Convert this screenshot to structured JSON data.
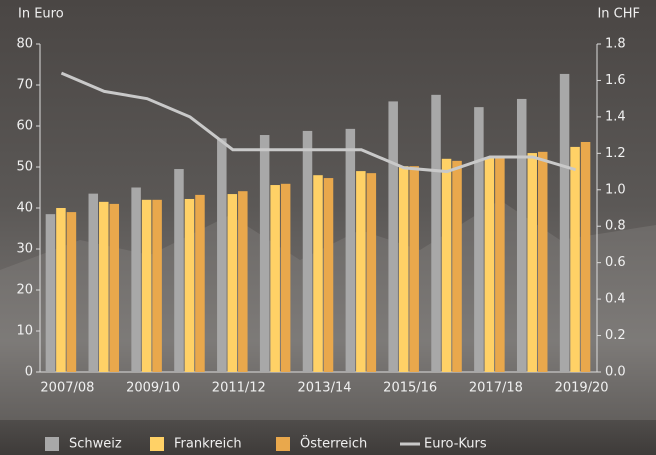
{
  "chart_data": {
    "type": "bar",
    "y_label": "In Euro",
    "y2_label": "In CHF",
    "categories": [
      "2007/08",
      null,
      "2009/10",
      null,
      "2011/12",
      null,
      "2013/14",
      null,
      "2015/16",
      null,
      "2017/18",
      null,
      "2019/20"
    ],
    "series": [
      {
        "name": "Schweiz",
        "color": "#a8a8a8",
        "values": [
          38.5,
          43.5,
          45,
          49.5,
          57,
          57.8,
          58.8,
          59.3,
          66,
          67.6,
          64.6,
          66.6,
          72.7
        ]
      },
      {
        "name": "Frankreich",
        "color": "#ffd166",
        "values": [
          40,
          41.5,
          42,
          42.2,
          43.4,
          45.6,
          48,
          49,
          50.2,
          52,
          52.4,
          53.4,
          54.9
        ]
      },
      {
        "name": "Österreich",
        "color": "#e9a84c",
        "values": [
          39,
          41,
          42,
          43.2,
          44.1,
          45.9,
          47.3,
          48.5,
          50.2,
          51.5,
          52.4,
          53.7,
          56.1
        ]
      },
      {
        "name": "Euro-Kurs",
        "color": "#c9c9c9",
        "type": "line",
        "axis": "y2",
        "values": [
          1.64,
          1.54,
          1.5,
          1.4,
          1.22,
          1.22,
          1.22,
          1.22,
          1.12,
          1.1,
          1.18,
          1.18,
          1.11
        ]
      }
    ],
    "ylim": [
      0,
      80
    ],
    "yticks": [
      0,
      10,
      20,
      30,
      40,
      50,
      60,
      70,
      80
    ],
    "y2lim": [
      0,
      1.8
    ],
    "y2ticks": [
      {
        "value": 0,
        "label": "0.0"
      },
      {
        "value": 0.2,
        "label": "0.2"
      },
      {
        "value": 0.4,
        "label": "0.4"
      },
      {
        "value": 0.6,
        "label": "0.6"
      },
      {
        "value": 0.8,
        "label": "0.8"
      },
      {
        "value": 1,
        "label": "1.0"
      },
      {
        "value": 1.2,
        "label": "1.2"
      },
      {
        "value": 1.4,
        "label": "1.4"
      },
      {
        "value": 1.6,
        "label": "1.6"
      },
      {
        "value": 1.8,
        "label": "1.8"
      }
    ],
    "grid": false,
    "legend": "bottom"
  }
}
